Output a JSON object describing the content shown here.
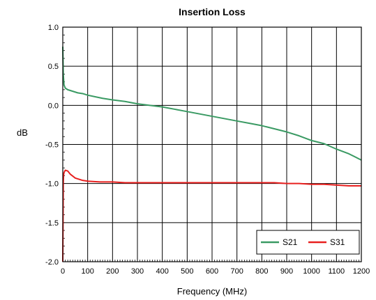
{
  "chart_data": {
    "type": "line",
    "title": "Insertion Loss",
    "xlabel": "Frequency (MHz)",
    "ylabel": "dB",
    "xlim": [
      0,
      1200
    ],
    "ylim": [
      -2.0,
      1.0
    ],
    "x_ticks": [
      0,
      100,
      200,
      300,
      400,
      500,
      600,
      700,
      800,
      900,
      1000,
      1100,
      1200
    ],
    "x_tick_labels": [
      "0",
      "100",
      "200",
      "300",
      "400",
      "500",
      "600",
      "700",
      "800",
      "900",
      "1000",
      "1100",
      "1200"
    ],
    "y_ticks": [
      1.0,
      0.5,
      0.0,
      -0.5,
      -1.0,
      -1.5,
      -2.0
    ],
    "y_tick_labels": [
      "1.0",
      "0.5",
      "0.0",
      "-0.5",
      "-1.0",
      "-1.5",
      "-2.0"
    ],
    "grid": true,
    "legend_position": "bottom-right",
    "series": [
      {
        "name": "S21",
        "color": "#3a9a63",
        "x": [
          0,
          2,
          5,
          10,
          20,
          40,
          60,
          80,
          100,
          130,
          160,
          200,
          250,
          300,
          350,
          400,
          450,
          500,
          550,
          600,
          650,
          700,
          750,
          800,
          850,
          900,
          950,
          1000,
          1050,
          1100,
          1150,
          1200
        ],
        "y": [
          0.75,
          0.4,
          0.26,
          0.22,
          0.2,
          0.18,
          0.16,
          0.15,
          0.13,
          0.11,
          0.09,
          0.07,
          0.05,
          0.02,
          0.0,
          -0.02,
          -0.05,
          -0.08,
          -0.11,
          -0.14,
          -0.17,
          -0.2,
          -0.23,
          -0.26,
          -0.3,
          -0.34,
          -0.39,
          -0.45,
          -0.49,
          -0.56,
          -0.62,
          -0.7
        ]
      },
      {
        "name": "S31",
        "color": "#e8201f",
        "x": [
          0,
          1,
          2,
          3,
          5,
          10,
          20,
          30,
          50,
          80,
          100,
          150,
          200,
          250,
          300,
          350,
          400,
          500,
          600,
          700,
          800,
          850,
          900,
          950,
          1000,
          1050,
          1100,
          1150,
          1200
        ],
        "y": [
          -2.0,
          -1.5,
          -1.0,
          -0.9,
          -0.86,
          -0.83,
          -0.84,
          -0.88,
          -0.93,
          -0.96,
          -0.97,
          -0.98,
          -0.98,
          -0.99,
          -0.99,
          -0.99,
          -0.99,
          -0.99,
          -0.99,
          -0.99,
          -0.99,
          -0.99,
          -1.0,
          -1.0,
          -1.01,
          -1.01,
          -1.02,
          -1.03,
          -1.03
        ]
      }
    ]
  }
}
